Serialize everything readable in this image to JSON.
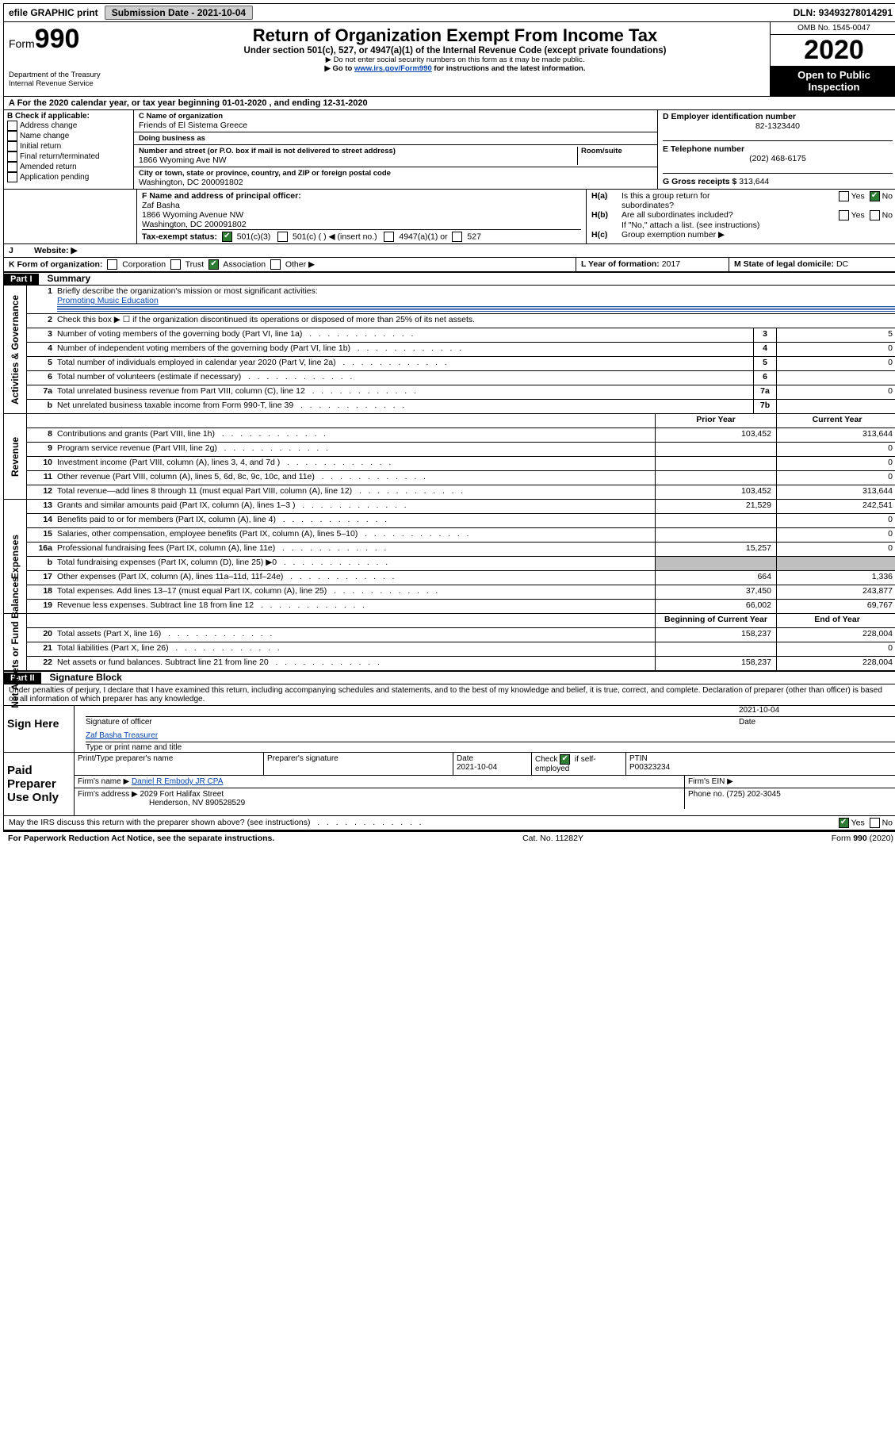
{
  "topbar": {
    "efile": "efile GRAPHIC print",
    "subdate_lbl": "Submission Date - ",
    "subdate": "2021-10-04",
    "dln_lbl": "DLN: ",
    "dln": "93493278014291"
  },
  "header": {
    "form_lbl": "Form",
    "form_num": "990",
    "dept1": "Department of the Treasury",
    "dept2": "Internal Revenue Service",
    "title": "Return of Organization Exempt From Income Tax",
    "sub1": "Under section 501(c), 527, or 4947(a)(1) of the Internal Revenue Code (except private foundations)",
    "sub2": "Do not enter social security numbers on this form as it may be made public.",
    "sub3_a": "Go to ",
    "sub3_link": "www.irs.gov/Form990",
    "sub3_b": " for instructions and the latest information.",
    "omb": "OMB No. 1545-0047",
    "year": "2020",
    "open": "Open to Public Inspection"
  },
  "rowA": "A  For the 2020 calendar year, or tax year beginning 01-01-2020    , and ending 12-31-2020",
  "boxB": {
    "hdr": "B Check if applicable:",
    "opts": [
      "Address change",
      "Name change",
      "Initial return",
      "Final return/terminated",
      "Amended return",
      "Application pending"
    ]
  },
  "boxC": {
    "name_lbl": "C Name of organization",
    "name": "Friends of El Sistema Greece",
    "dba_lbl": "Doing business as",
    "dba": "",
    "addr_lbl": "Number and street (or P.O. box if mail is not delivered to street address)",
    "room_lbl": "Room/suite",
    "addr": "1866 Wyoming Ave NW",
    "city_lbl": "City or town, state or province, country, and ZIP or foreign postal code",
    "city": "Washington, DC   200091802"
  },
  "boxD": {
    "lbl": "D Employer identification number",
    "val": "82-1323440"
  },
  "boxE": {
    "lbl": "E Telephone number",
    "val": "(202) 468-6175"
  },
  "boxG": {
    "lbl": "G Gross receipts $ ",
    "val": "313,644"
  },
  "boxF": {
    "lbl": "F Name and address of principal officer:",
    "l1": "Zaf Basha",
    "l2": "1866 Wyoming Avenue NW",
    "l3": "Washington, DC   200091802"
  },
  "boxH": {
    "a": "Is this a group return for",
    "a2": "subordinates?",
    "b": "Are all subordinates included?",
    "note": "If \"No,\" attach a list. (see instructions)",
    "c": "Group exemption number ▶",
    "yes": "Yes",
    "no": "No",
    "ha": "H(a)",
    "hb": "H(b)",
    "hc": "H(c)"
  },
  "boxI": {
    "lbl": "Tax-exempt status:",
    "o1": "501(c)(3)",
    "o2": "501(c) (   ) ◀ (insert no.)",
    "o3": "4947(a)(1) or",
    "o4": "527"
  },
  "boxJ": {
    "lbl": "Website: ▶",
    "val": ""
  },
  "boxK": {
    "lbl": "K Form of organization:",
    "o1": "Corporation",
    "o2": "Trust",
    "o3": "Association",
    "o4": "Other ▶"
  },
  "boxL": {
    "lbl": "L Year of formation: ",
    "val": "2017"
  },
  "boxM": {
    "lbl": "M State of legal domicile: ",
    "val": "DC"
  },
  "part1": {
    "hdr": "Part I",
    "title": "Summary"
  },
  "summary": {
    "q1": "Briefly describe the organization's mission or most significant activities:",
    "q1v": "Promoting Music Education",
    "q2": "Check this box ▶ ☐  if the organization discontinued its operations or disposed of more than 25% of its net assets.",
    "lines": [
      {
        "n": "3",
        "t": "Number of voting members of the governing body (Part VI, line 1a)",
        "box": "3",
        "v": "5"
      },
      {
        "n": "4",
        "t": "Number of independent voting members of the governing body (Part VI, line 1b)",
        "box": "4",
        "v": "0"
      },
      {
        "n": "5",
        "t": "Total number of individuals employed in calendar year 2020 (Part V, line 2a)",
        "box": "5",
        "v": "0"
      },
      {
        "n": "6",
        "t": "Total number of volunteers (estimate if necessary)",
        "box": "6",
        "v": ""
      },
      {
        "n": "7a",
        "t": "Total unrelated business revenue from Part VIII, column (C), line 12",
        "box": "7a",
        "v": "0"
      },
      {
        "n": "b",
        "t": "Net unrelated business taxable income from Form 990-T, line 39",
        "box": "7b",
        "v": ""
      }
    ],
    "col_prior": "Prior Year",
    "col_curr": "Current Year",
    "col_beg": "Beginning of Current Year",
    "col_end": "End of Year"
  },
  "revenue": [
    {
      "n": "8",
      "t": "Contributions and grants (Part VIII, line 1h)",
      "p": "103,452",
      "c": "313,644"
    },
    {
      "n": "9",
      "t": "Program service revenue (Part VIII, line 2g)",
      "p": "",
      "c": "0"
    },
    {
      "n": "10",
      "t": "Investment income (Part VIII, column (A), lines 3, 4, and 7d )",
      "p": "",
      "c": "0"
    },
    {
      "n": "11",
      "t": "Other revenue (Part VIII, column (A), lines 5, 6d, 8c, 9c, 10c, and 11e)",
      "p": "",
      "c": "0"
    },
    {
      "n": "12",
      "t": "Total revenue—add lines 8 through 11 (must equal Part VIII, column (A), line 12)",
      "p": "103,452",
      "c": "313,644"
    }
  ],
  "expenses": [
    {
      "n": "13",
      "t": "Grants and similar amounts paid (Part IX, column (A), lines 1–3 )",
      "p": "21,529",
      "c": "242,541"
    },
    {
      "n": "14",
      "t": "Benefits paid to or for members (Part IX, column (A), line 4)",
      "p": "",
      "c": "0"
    },
    {
      "n": "15",
      "t": "Salaries, other compensation, employee benefits (Part IX, column (A), lines 5–10)",
      "p": "",
      "c": "0"
    },
    {
      "n": "16a",
      "t": "Professional fundraising fees (Part IX, column (A), line 11e)",
      "p": "15,257",
      "c": "0"
    },
    {
      "n": "b",
      "t": "Total fundraising expenses (Part IX, column (D), line 25) ▶0",
      "p": "GREY",
      "c": "GREY"
    },
    {
      "n": "17",
      "t": "Other expenses (Part IX, column (A), lines 11a–11d, 11f–24e)",
      "p": "664",
      "c": "1,336"
    },
    {
      "n": "18",
      "t": "Total expenses. Add lines 13–17 (must equal Part IX, column (A), line 25)",
      "p": "37,450",
      "c": "243,877"
    },
    {
      "n": "19",
      "t": "Revenue less expenses. Subtract line 18 from line 12",
      "p": "66,002",
      "c": "69,767"
    }
  ],
  "netassets": [
    {
      "n": "20",
      "t": "Total assets (Part X, line 16)",
      "p": "158,237",
      "c": "228,004"
    },
    {
      "n": "21",
      "t": "Total liabilities (Part X, line 26)",
      "p": "",
      "c": "0"
    },
    {
      "n": "22",
      "t": "Net assets or fund balances. Subtract line 21 from line 20",
      "p": "158,237",
      "c": "228,004"
    }
  ],
  "sec_labels": {
    "gov": "Activities & Governance",
    "rev": "Revenue",
    "exp": "Expenses",
    "net": "Net Assets or Fund Balances"
  },
  "part2": {
    "hdr": "Part II",
    "title": "Signature Block"
  },
  "perjury": "Under penalties of perjury, I declare that I have examined this return, including accompanying schedules and statements, and to the best of my knowledge and belief, it is true, correct, and complete. Declaration of preparer (other than officer) is based on all information of which preparer has any knowledge.",
  "sign": {
    "here": "Sign Here",
    "sig_lbl": "Signature of officer",
    "date_lbl": "Date",
    "date": "2021-10-04",
    "name": "Zaf Basha  Treasurer",
    "name_lbl": "Type or print name and title"
  },
  "paid": {
    "left": "Paid Preparer Use Only",
    "r1": {
      "c1": "Print/Type preparer's name",
      "c2": "Preparer's signature",
      "c3_l": "Date",
      "c3": "2021-10-04",
      "c4_l": "Check",
      "c4_l2": "if self-employed",
      "c5_l": "PTIN",
      "c5": "P00323234"
    },
    "r2": {
      "c1_l": "Firm's name     ▶",
      "c1": "Daniel R Embody JR CPA",
      "c2_l": "Firm's EIN ▶",
      "c2": ""
    },
    "r3": {
      "c1_l": "Firm's address ▶",
      "c1a": "2029 Fort Halifax Street",
      "c1b": "Henderson, NV   890528529",
      "c2_l": "Phone no. ",
      "c2": "(725) 202-3045"
    }
  },
  "discuss": {
    "txt": "May the IRS discuss this return with the preparer shown above? (see instructions)",
    "yes": "Yes",
    "no": "No"
  },
  "footer": {
    "l": "For Paperwork Reduction Act Notice, see the separate instructions.",
    "m": "Cat. No. 11282Y",
    "r": "Form 990 (2020)"
  }
}
